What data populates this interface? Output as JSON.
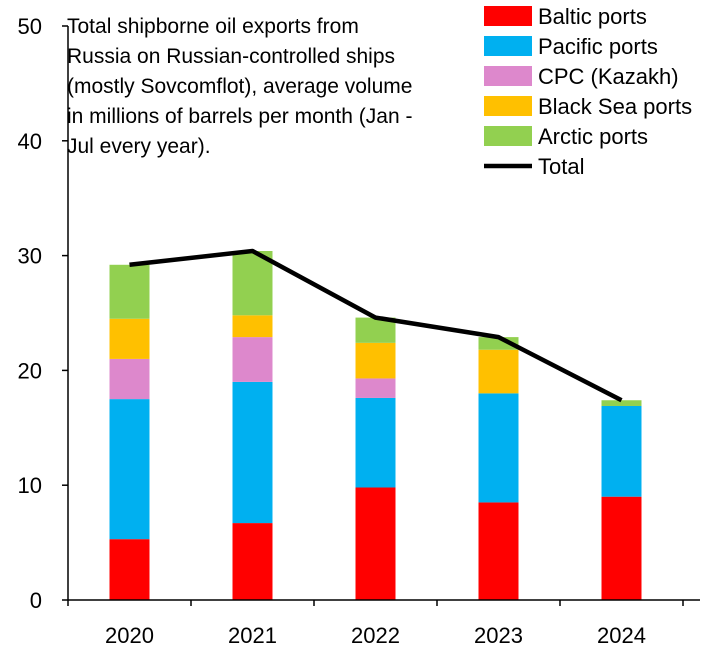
{
  "chart_data": {
    "type": "bar",
    "stacked": true,
    "title_lines": [
      "Total shipborne oil exports from",
      "Russia on Russian-controlled ships",
      "(mostly Sovcomflot), average volume",
      "in millions of barrels per month (Jan -",
      "Jul every year)."
    ],
    "categories": [
      "2020",
      "2021",
      "2022",
      "2023",
      "2024"
    ],
    "ylim": [
      0,
      50
    ],
    "yticks": [
      0,
      10,
      20,
      30,
      40,
      50
    ],
    "ytick_labels": [
      "0",
      "10",
      "20",
      "30",
      "40",
      "50"
    ],
    "grid": false,
    "legend_position": "top-right",
    "series": [
      {
        "name": "Baltic ports",
        "color": "#ff0000",
        "values": [
          5.3,
          6.7,
          9.8,
          8.5,
          9.0
        ]
      },
      {
        "name": "Pacific ports",
        "color": "#00b0f0",
        "values": [
          12.2,
          12.3,
          7.8,
          9.5,
          7.9
        ]
      },
      {
        "name": "CPC (Kazakh)",
        "color": "#dd88cc",
        "values": [
          3.5,
          3.9,
          1.7,
          0.0,
          0.0
        ]
      },
      {
        "name": "Black Sea ports",
        "color": "#ffc000",
        "values": [
          3.5,
          1.9,
          3.1,
          3.8,
          0.0
        ]
      },
      {
        "name": "Arctic ports",
        "color": "#92d050",
        "values": [
          4.7,
          5.6,
          2.2,
          1.1,
          0.5
        ]
      }
    ],
    "line_series": {
      "name": "Total",
      "color": "#000000",
      "values": [
        29.2,
        30.4,
        24.6,
        22.9,
        17.4
      ]
    }
  }
}
